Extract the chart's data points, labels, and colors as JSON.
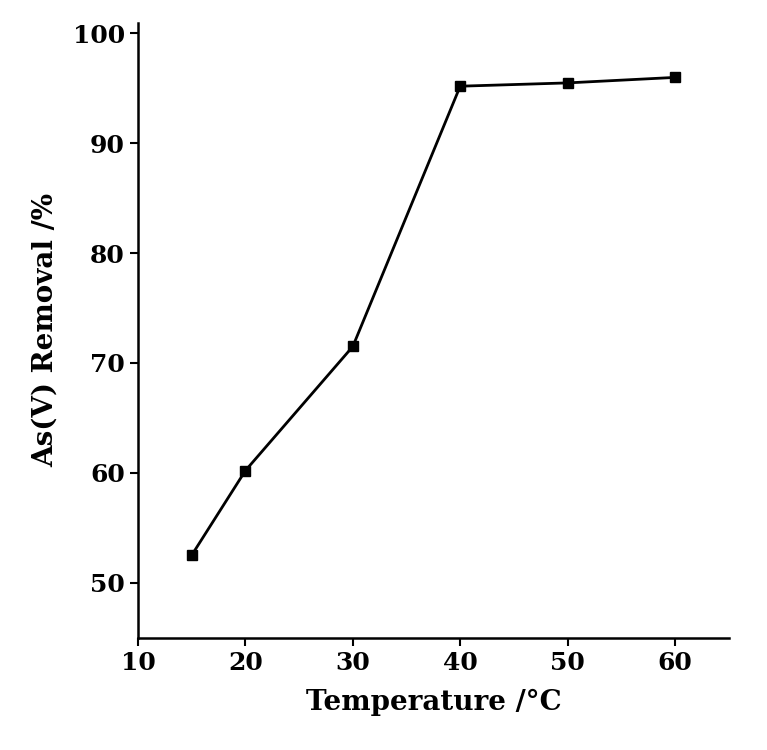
{
  "x": [
    15,
    20,
    30,
    40,
    50,
    60
  ],
  "y": [
    52.5,
    60.2,
    71.5,
    95.2,
    95.5,
    96.0
  ],
  "xlim": [
    10,
    65
  ],
  "ylim": [
    45,
    101
  ],
  "xticks": [
    10,
    20,
    30,
    40,
    50,
    60
  ],
  "yticks": [
    50,
    60,
    70,
    80,
    90,
    100
  ],
  "xlabel": "Temperature /°C",
  "ylabel": "As(V) Removal /%",
  "line_color": "#000000",
  "marker": "s",
  "marker_size": 7,
  "linewidth": 2.0,
  "background_color": "#ffffff",
  "xlabel_fontsize": 20,
  "ylabel_fontsize": 20,
  "tick_fontsize": 18,
  "label_fontweight": "bold"
}
